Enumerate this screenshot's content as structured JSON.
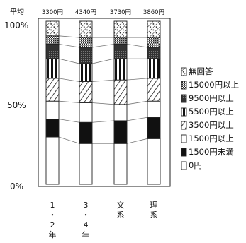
{
  "chart_data": {
    "type": "bar",
    "stacked": true,
    "percent_stacked": true,
    "title": "",
    "xlabel": "",
    "ylabel": "",
    "ylim": [
      0,
      100
    ],
    "y_ticks": [
      "0%",
      "50%",
      "100%"
    ],
    "y_tick_values": [
      0,
      50,
      100
    ],
    "avg_label": "平均",
    "averages": [
      "3300円",
      "4340円",
      "3730円",
      "3860円"
    ],
    "categories": [
      [
        "1",
        "・",
        "2",
        "年"
      ],
      [
        "3",
        "・",
        "4",
        "年"
      ],
      [
        "文",
        "系"
      ],
      [
        "理",
        "系"
      ]
    ],
    "category_names": [
      "1・2年",
      "3・4年",
      "文系",
      "理系"
    ],
    "series": [
      {
        "name": "0円",
        "pattern": "white",
        "values": [
          29,
          25,
          25,
          28
        ]
      },
      {
        "name": "1500円未満",
        "pattern": "black",
        "values": [
          11,
          13,
          14,
          13
        ]
      },
      {
        "name": "1500円以上",
        "pattern": "white",
        "values": [
          11,
          12,
          10,
          10
        ]
      },
      {
        "name": "3500円以上",
        "pattern": "diagonal",
        "values": [
          14,
          13,
          15,
          14
        ]
      },
      {
        "name": "5500円以上",
        "pattern": "vertical",
        "values": [
          12,
          11,
          13,
          12
        ]
      },
      {
        "name": "9500円以上",
        "pattern": "dark",
        "values": [
          9,
          10,
          9,
          7
        ]
      },
      {
        "name": "15000円以上",
        "pattern": "dotted",
        "values": [
          5,
          6,
          4,
          6
        ]
      },
      {
        "name": "無回答",
        "pattern": "mixed",
        "values": [
          9,
          10,
          10,
          10
        ]
      }
    ],
    "legend_order_top_to_bottom": [
      "無回答",
      "15000円以上",
      "9500円以上",
      "5500円以上",
      "3500円以上",
      "1500円以上",
      "1500円未満",
      "0円"
    ],
    "legend_position": "right",
    "grid": false
  }
}
